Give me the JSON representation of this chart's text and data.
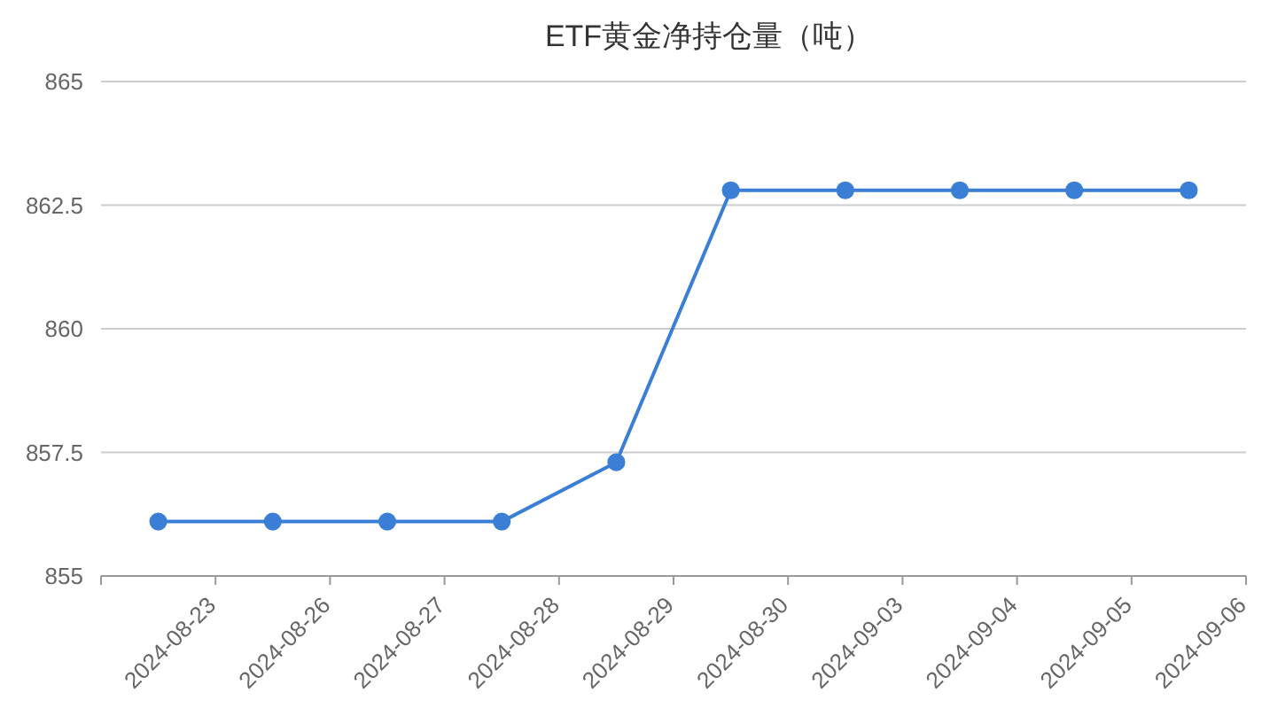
{
  "chart_data": {
    "type": "line",
    "title": "ETF黄金净持仓量（吨）",
    "categories": [
      "2024-08-23",
      "2024-08-26",
      "2024-08-27",
      "2024-08-28",
      "2024-08-29",
      "2024-08-30",
      "2024-09-03",
      "2024-09-04",
      "2024-09-05",
      "2024-09-06"
    ],
    "series": [
      {
        "color": "#3a7fd5",
        "values": [
          856.1,
          856.1,
          856.1,
          856.1,
          857.3,
          862.8,
          862.8,
          862.8,
          862.8,
          862.8
        ]
      }
    ],
    "ylim": [
      855,
      865
    ],
    "yticks": [
      855,
      857.5,
      860,
      862.5,
      865
    ],
    "grid": "y",
    "marker": "circle",
    "line_style": "solid"
  }
}
